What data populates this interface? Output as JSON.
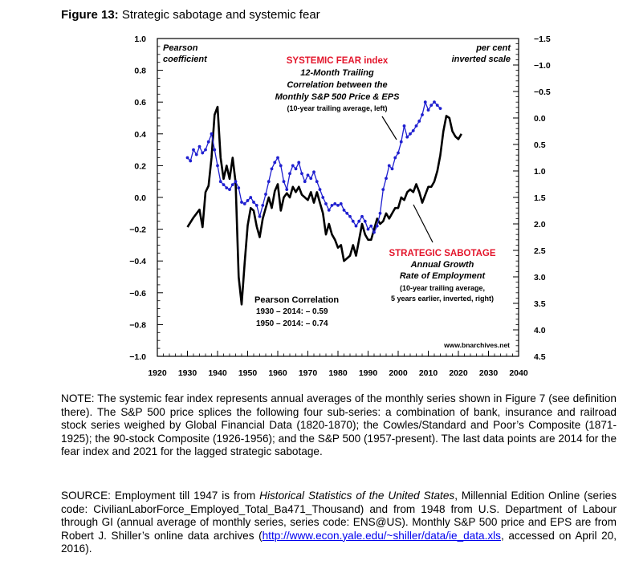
{
  "figure": {
    "label": "Figure 13:",
    "title": "Strategic sabotage and systemic fear"
  },
  "chart_data": {
    "type": "line",
    "x_axis": {
      "range": [
        1920,
        2040
      ],
      "ticks": [
        1920,
        1930,
        1940,
        1950,
        1960,
        1970,
        1980,
        1990,
        2000,
        2010,
        2020,
        2030,
        2040
      ]
    },
    "left_axis": {
      "label_line1": "Pearson",
      "label_line2": "coefficient",
      "range": [
        -1.0,
        1.0
      ],
      "ticks": [
        {
          "v": 1.0,
          "t": "1.0"
        },
        {
          "v": 0.8,
          "t": "0.8"
        },
        {
          "v": 0.6,
          "t": "0.6"
        },
        {
          "v": 0.4,
          "t": "0.4"
        },
        {
          "v": 0.2,
          "t": "0.2"
        },
        {
          "v": 0.0,
          "t": "0.0"
        },
        {
          "v": -0.2,
          "t": "−0.2"
        },
        {
          "v": -0.4,
          "t": "−0.4"
        },
        {
          "v": -0.6,
          "t": "−0.6"
        },
        {
          "v": -0.8,
          "t": "−0.8"
        },
        {
          "v": -1.0,
          "t": "−1.0"
        }
      ]
    },
    "right_axis": {
      "label_line1": "per cent",
      "label_line2": "inverted scale",
      "inverted": true,
      "range": [
        -1.5,
        4.5
      ],
      "ticks": [
        {
          "v": -1.5,
          "t": "−1.5"
        },
        {
          "v": -1.0,
          "t": "−1.0"
        },
        {
          "v": -0.5,
          "t": "−0.5"
        },
        {
          "v": 0.0,
          "t": "0.0"
        },
        {
          "v": 0.5,
          "t": "0.5"
        },
        {
          "v": 1.0,
          "t": "1.0"
        },
        {
          "v": 1.5,
          "t": "1.5"
        },
        {
          "v": 2.0,
          "t": "2.0"
        },
        {
          "v": 2.5,
          "t": "2.5"
        },
        {
          "v": 3.0,
          "t": "3.0"
        },
        {
          "v": 3.5,
          "t": "3.5"
        },
        {
          "v": 4.0,
          "t": "4.0"
        },
        {
          "v": 4.5,
          "t": "4.5"
        }
      ]
    },
    "grid": false,
    "series": [
      {
        "axis": "left",
        "color": "#1f1fd0",
        "markers": true,
        "x": [
          1930,
          1931,
          1932,
          1933,
          1934,
          1935,
          1936,
          1937,
          1938,
          1939,
          1940,
          1941,
          1942,
          1943,
          1944,
          1945,
          1946,
          1947,
          1948,
          1949,
          1950,
          1951,
          1952,
          1953,
          1954,
          1955,
          1956,
          1957,
          1958,
          1959,
          1960,
          1961,
          1962,
          1963,
          1964,
          1965,
          1966,
          1967,
          1968,
          1969,
          1970,
          1971,
          1972,
          1973,
          1974,
          1975,
          1976,
          1977,
          1978,
          1979,
          1980,
          1981,
          1982,
          1983,
          1984,
          1985,
          1986,
          1987,
          1988,
          1989,
          1990,
          1991,
          1992,
          1993,
          1994,
          1995,
          1996,
          1997,
          1998,
          1999,
          2000,
          2001,
          2002,
          2003,
          2004,
          2005,
          2006,
          2007,
          2008,
          2009,
          2010,
          2011,
          2012,
          2013,
          2014
        ],
        "y": [
          0.25,
          0.23,
          0.3,
          0.27,
          0.32,
          0.28,
          0.3,
          0.35,
          0.4,
          0.3,
          0.2,
          0.1,
          0.08,
          0.06,
          0.05,
          0.08,
          0.1,
          0.06,
          -0.03,
          -0.04,
          -0.02,
          0.0,
          -0.03,
          -0.05,
          -0.12,
          -0.05,
          0.02,
          0.1,
          0.18,
          0.22,
          0.25,
          0.2,
          0.1,
          0.05,
          0.15,
          0.2,
          0.18,
          0.22,
          0.15,
          0.1,
          0.14,
          0.12,
          0.16,
          0.1,
          0.05,
          0.0,
          -0.04,
          -0.08,
          -0.05,
          -0.04,
          -0.05,
          -0.04,
          -0.08,
          -0.1,
          -0.12,
          -0.15,
          -0.18,
          -0.15,
          -0.12,
          -0.15,
          -0.2,
          -0.18,
          -0.22,
          -0.18,
          -0.1,
          0.05,
          0.12,
          0.2,
          0.18,
          0.25,
          0.28,
          0.35,
          0.45,
          0.38,
          0.4,
          0.42,
          0.45,
          0.48,
          0.52,
          0.6,
          0.55,
          0.58,
          0.6,
          0.58,
          0.56
        ]
      },
      {
        "axis": "right",
        "color": "#000000",
        "markers": false,
        "x": [
          1930,
          1932,
          1934,
          1935,
          1936,
          1937,
          1938,
          1939,
          1940,
          1941,
          1942,
          1943,
          1944,
          1945,
          1946,
          1947,
          1948,
          1949,
          1950,
          1951,
          1952,
          1953,
          1954,
          1955,
          1956,
          1957,
          1958,
          1959,
          1960,
          1961,
          1962,
          1963,
          1964,
          1965,
          1966,
          1967,
          1968,
          1969,
          1970,
          1971,
          1972,
          1973,
          1974,
          1975,
          1976,
          1977,
          1978,
          1979,
          1980,
          1981,
          1982,
          1983,
          1984,
          1985,
          1986,
          1987,
          1988,
          1989,
          1990,
          1991,
          1992,
          1993,
          1994,
          1995,
          1996,
          1997,
          1998,
          1999,
          2000,
          2001,
          2002,
          2003,
          2004,
          2005,
          2006,
          2007,
          2008,
          2009,
          2010,
          2011,
          2012,
          2013,
          2014,
          2015,
          2016,
          2017,
          2018,
          2019,
          2020,
          2021
        ],
        "y": [
          2.06,
          1.88,
          1.73,
          2.06,
          1.4,
          1.28,
          0.75,
          -0.06,
          -0.21,
          0.75,
          1.15,
          0.9,
          1.15,
          0.75,
          1.22,
          3.0,
          3.52,
          2.73,
          2.03,
          1.7,
          1.75,
          2.05,
          2.25,
          1.9,
          1.7,
          1.5,
          1.7,
          1.38,
          1.25,
          1.75,
          1.5,
          1.42,
          1.5,
          1.3,
          1.4,
          1.3,
          1.45,
          1.5,
          1.55,
          1.4,
          1.6,
          1.4,
          1.6,
          1.8,
          2.2,
          2.0,
          2.2,
          2.3,
          2.45,
          2.4,
          2.7,
          2.65,
          2.6,
          2.4,
          2.6,
          2.3,
          2.0,
          2.2,
          2.3,
          2.3,
          2.1,
          1.9,
          2.0,
          1.95,
          1.8,
          1.9,
          1.8,
          1.7,
          1.7,
          1.5,
          1.55,
          1.4,
          1.35,
          1.4,
          1.25,
          1.4,
          1.6,
          1.45,
          1.3,
          1.3,
          1.2,
          1.0,
          0.7,
          0.25,
          -0.04,
          0.0,
          0.25,
          0.35,
          0.4,
          0.3
        ]
      }
    ],
    "annotations": {
      "fear_title": "SYSTEMIC FEAR index",
      "fear_l1": "12-Month Trailing",
      "fear_l2": "Correlation between the",
      "fear_l3": "Monthly S&P 500 Price & EPS",
      "fear_l4": "(10-year trailing average, left)",
      "sab_title": "STRATEGIC SABOTAGE",
      "sab_l1": "Annual Growth",
      "sab_l2": "Rate of Employment",
      "sab_l3": "(10-year trailing average,",
      "sab_l4": "5 years earlier, inverted, right)",
      "corr_title": "Pearson Correlation",
      "corr_l1": "1930 – 2014:  – 0.59",
      "corr_l2": "1950 – 2014:  – 0.74",
      "site": "www.bnarchives.net"
    }
  },
  "note": "NOTE: The systemic fear index represents annual averages of the monthly series shown in Figure 7 (see definition there). The S&P 500 price splices the following four sub-series: a combination of bank, insurance and railroad stock series weighed by Global Financial Data (1820-1870); the Cowles/Standard and Poor’s Composite (1871-1925); the 90-stock Composite (1926-1956); and the S&P 500 (1957-present). The last data points are 2014 for the fear index and 2021 for the lagged strategic sabotage.",
  "source": {
    "part1": "SOURCE: Employment till 1947 is from ",
    "italic1": "Historical Statistics of the United States",
    "part2": ", Millennial Edition Online (series code: CivilianLaborForce_Employed_Total_Ba471_Thousand) and from 1948 from U.S. Department of Labour through GI (annual average of monthly series, series code: ENS@US). Monthly S&P 500 price and EPS are from Robert J. Shiller’s online data archives (",
    "link": "http://www.econ.yale.edu/~shiller/data/ie_data.xls",
    "part3": ", accessed on April 20, 2016)."
  }
}
